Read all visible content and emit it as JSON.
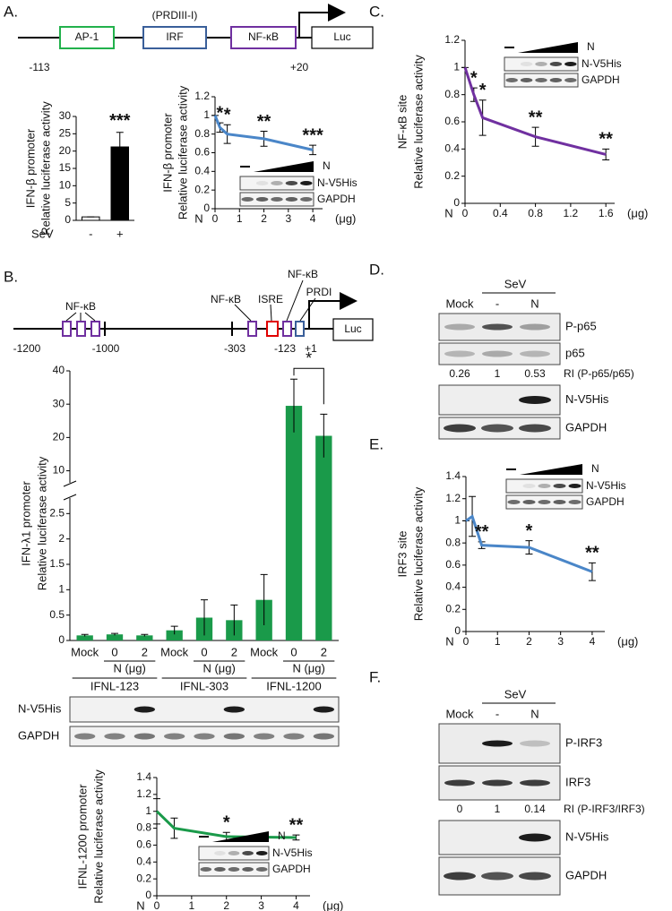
{
  "panel_labels": [
    "A.",
    "B.",
    "C.",
    "D.",
    "E.",
    "F."
  ],
  "diagram_a": {
    "note": "(PRDIII-I)",
    "boxes": [
      "AP-1",
      "IRF",
      "NF-κB",
      "Luc"
    ],
    "positions": [
      "-113",
      "+20"
    ]
  },
  "diagram_b": {
    "sites": [
      "NF-κB",
      "NF-κB",
      "ISRE",
      "NF-κB",
      "PRDI"
    ],
    "luc": "Luc",
    "positions": [
      "-1200",
      "-1000",
      "-303",
      "-123",
      "+1"
    ]
  },
  "chart_data": [
    {
      "type": "bar",
      "y_label": [
        "IFN-β promoter",
        "Relative luciferase activity"
      ],
      "x_label": "SeV",
      "categories": [
        "-",
        "+"
      ],
      "values": [
        1,
        21.2
      ],
      "errors": [
        0,
        4.2
      ],
      "colors": [
        "#ffffff",
        "#000000"
      ],
      "significance": [
        null,
        "***"
      ],
      "ylim": [
        0,
        30
      ],
      "yticks": [
        0,
        5,
        10,
        15,
        20,
        25,
        30
      ]
    },
    {
      "type": "line",
      "y_label": [
        "IFN-β promoter",
        "Relative luciferase activity"
      ],
      "x_label": "N",
      "x_unit": "(μg)",
      "x": [
        0,
        0.2,
        0.5,
        2,
        4
      ],
      "values": [
        1,
        0.87,
        0.8,
        0.75,
        0.63
      ],
      "errors": [
        0,
        0.05,
        0.1,
        0.08,
        0.05
      ],
      "significance": [
        null,
        "*",
        "*",
        "**",
        "***"
      ],
      "color": "#4a86c8",
      "xlim": [
        0,
        4.4
      ],
      "xticks": [
        0,
        1,
        2,
        3,
        4
      ],
      "ylim": [
        0,
        1.2
      ],
      "yticks": [
        0,
        0.2,
        0.4,
        0.6,
        0.8,
        1,
        1.2
      ],
      "inset": {
        "wedge_label": "N",
        "rows": [
          "N-V5His",
          "GAPDH"
        ]
      }
    },
    {
      "type": "line",
      "y_label": [
        "NF-κB site",
        "Relative luciferase activity"
      ],
      "x_label": "N",
      "x_unit": "(μg)",
      "x": [
        0,
        0.1,
        0.2,
        0.8,
        1.6
      ],
      "values": [
        1,
        0.8,
        0.63,
        0.49,
        0.36
      ],
      "errors": [
        0,
        0.05,
        0.13,
        0.07,
        0.04
      ],
      "significance": [
        null,
        "*",
        "*",
        "**",
        "**"
      ],
      "color": "#7030a0",
      "xlim": [
        0,
        1.7
      ],
      "xticks": [
        0,
        0.4,
        0.8,
        1.2,
        1.6
      ],
      "ylim": [
        0,
        1.2
      ],
      "yticks": [
        0,
        0.2,
        0.4,
        0.6,
        0.8,
        1,
        1.2
      ],
      "inset": {
        "wedge_label": "N",
        "rows": [
          "N-V5His",
          "GAPDH"
        ]
      }
    },
    {
      "type": "line",
      "y_label": [
        "IRF3 site",
        "Relative luciferase activity"
      ],
      "x_label": "N",
      "x_unit": "(μg)",
      "x": [
        0,
        0.2,
        0.5,
        2,
        4
      ],
      "values": [
        1,
        1.04,
        0.78,
        0.76,
        0.54
      ],
      "errors": [
        0,
        0.18,
        0.03,
        0.06,
        0.08
      ],
      "significance": [
        null,
        null,
        "**",
        "*",
        "**"
      ],
      "color": "#4a86c8",
      "xlim": [
        0,
        4.4
      ],
      "xticks": [
        0,
        1,
        2,
        3,
        4
      ],
      "ylim": [
        0,
        1.4
      ],
      "yticks": [
        0,
        0.2,
        0.4,
        0.6,
        0.8,
        1,
        1.2,
        1.4
      ],
      "inset": {
        "wedge_label": "N",
        "rows": [
          "N-V5His",
          "GAPDH"
        ]
      }
    },
    {
      "type": "broken-bar",
      "y_label": [
        "IFN-λ1 promoter",
        "Relative luciferase activity"
      ],
      "categories": [
        "Mock",
        "0",
        "2",
        "Mock",
        "0",
        "2",
        "Mock",
        "0",
        "2"
      ],
      "group_sublabels": [
        "N (μg)",
        "N (μg)",
        "N (μg)"
      ],
      "groups": [
        "IFNL-123",
        "IFNL-303",
        "IFNL-1200"
      ],
      "values": [
        0.1,
        0.12,
        0.1,
        0.2,
        0.45,
        0.4,
        0.8,
        29.5,
        20.5
      ],
      "errors": [
        0.02,
        0.02,
        0.02,
        0.08,
        0.35,
        0.3,
        0.5,
        8,
        6.5
      ],
      "color": "#1a9a4a",
      "ylim": [
        0,
        40
      ],
      "axis_break": [
        2.7,
        8
      ],
      "yticks": [
        0,
        0.5,
        1,
        1.5,
        2,
        2.5,
        10,
        20,
        30,
        40
      ],
      "significance": {
        "text": "*",
        "from": 7,
        "to": 8
      },
      "blot_rows": [
        "N-V5His",
        "GAPDH"
      ]
    },
    {
      "type": "line",
      "y_label": [
        "IFNL-1200 promoter",
        "Relative luciferase activity"
      ],
      "x_label": "N",
      "x_unit": "(μg)",
      "x": [
        0,
        0.5,
        2,
        4
      ],
      "values": [
        1,
        0.8,
        0.7,
        0.69
      ],
      "errors": [
        0.15,
        0.12,
        0.05,
        0.03
      ],
      "significance": [
        null,
        null,
        "*",
        "**"
      ],
      "color": "#1a9a4a",
      "xlim": [
        0,
        4.4
      ],
      "xticks": [
        0,
        1,
        2,
        3,
        4
      ],
      "ylim": [
        0,
        1.4
      ],
      "yticks": [
        0,
        0.2,
        0.4,
        0.6,
        0.8,
        1,
        1.2,
        1.4
      ],
      "inset": {
        "wedge_label": "N",
        "rows": [
          "N-V5His",
          "GAPDH"
        ]
      }
    }
  ],
  "blot_d": {
    "mock": "Mock",
    "treatment": "SeV",
    "lanes": [
      "-",
      "N"
    ],
    "rows": [
      "P-p65",
      "p65"
    ],
    "ri_values": [
      0.26,
      1,
      0.53
    ],
    "ri_label": "RI (P-p65/p65)",
    "rows_lower": [
      "N-V5His",
      "GAPDH"
    ]
  },
  "blot_f": {
    "mock": "Mock",
    "treatment": "SeV",
    "lanes": [
      "-",
      "N"
    ],
    "rows": [
      "P-IRF3",
      "IRF3"
    ],
    "ri_values": [
      0,
      1,
      0.14
    ],
    "ri_label": "RI (P-IRF3/IRF3)",
    "rows_lower": [
      "N-V5His",
      "GAPDH"
    ]
  }
}
